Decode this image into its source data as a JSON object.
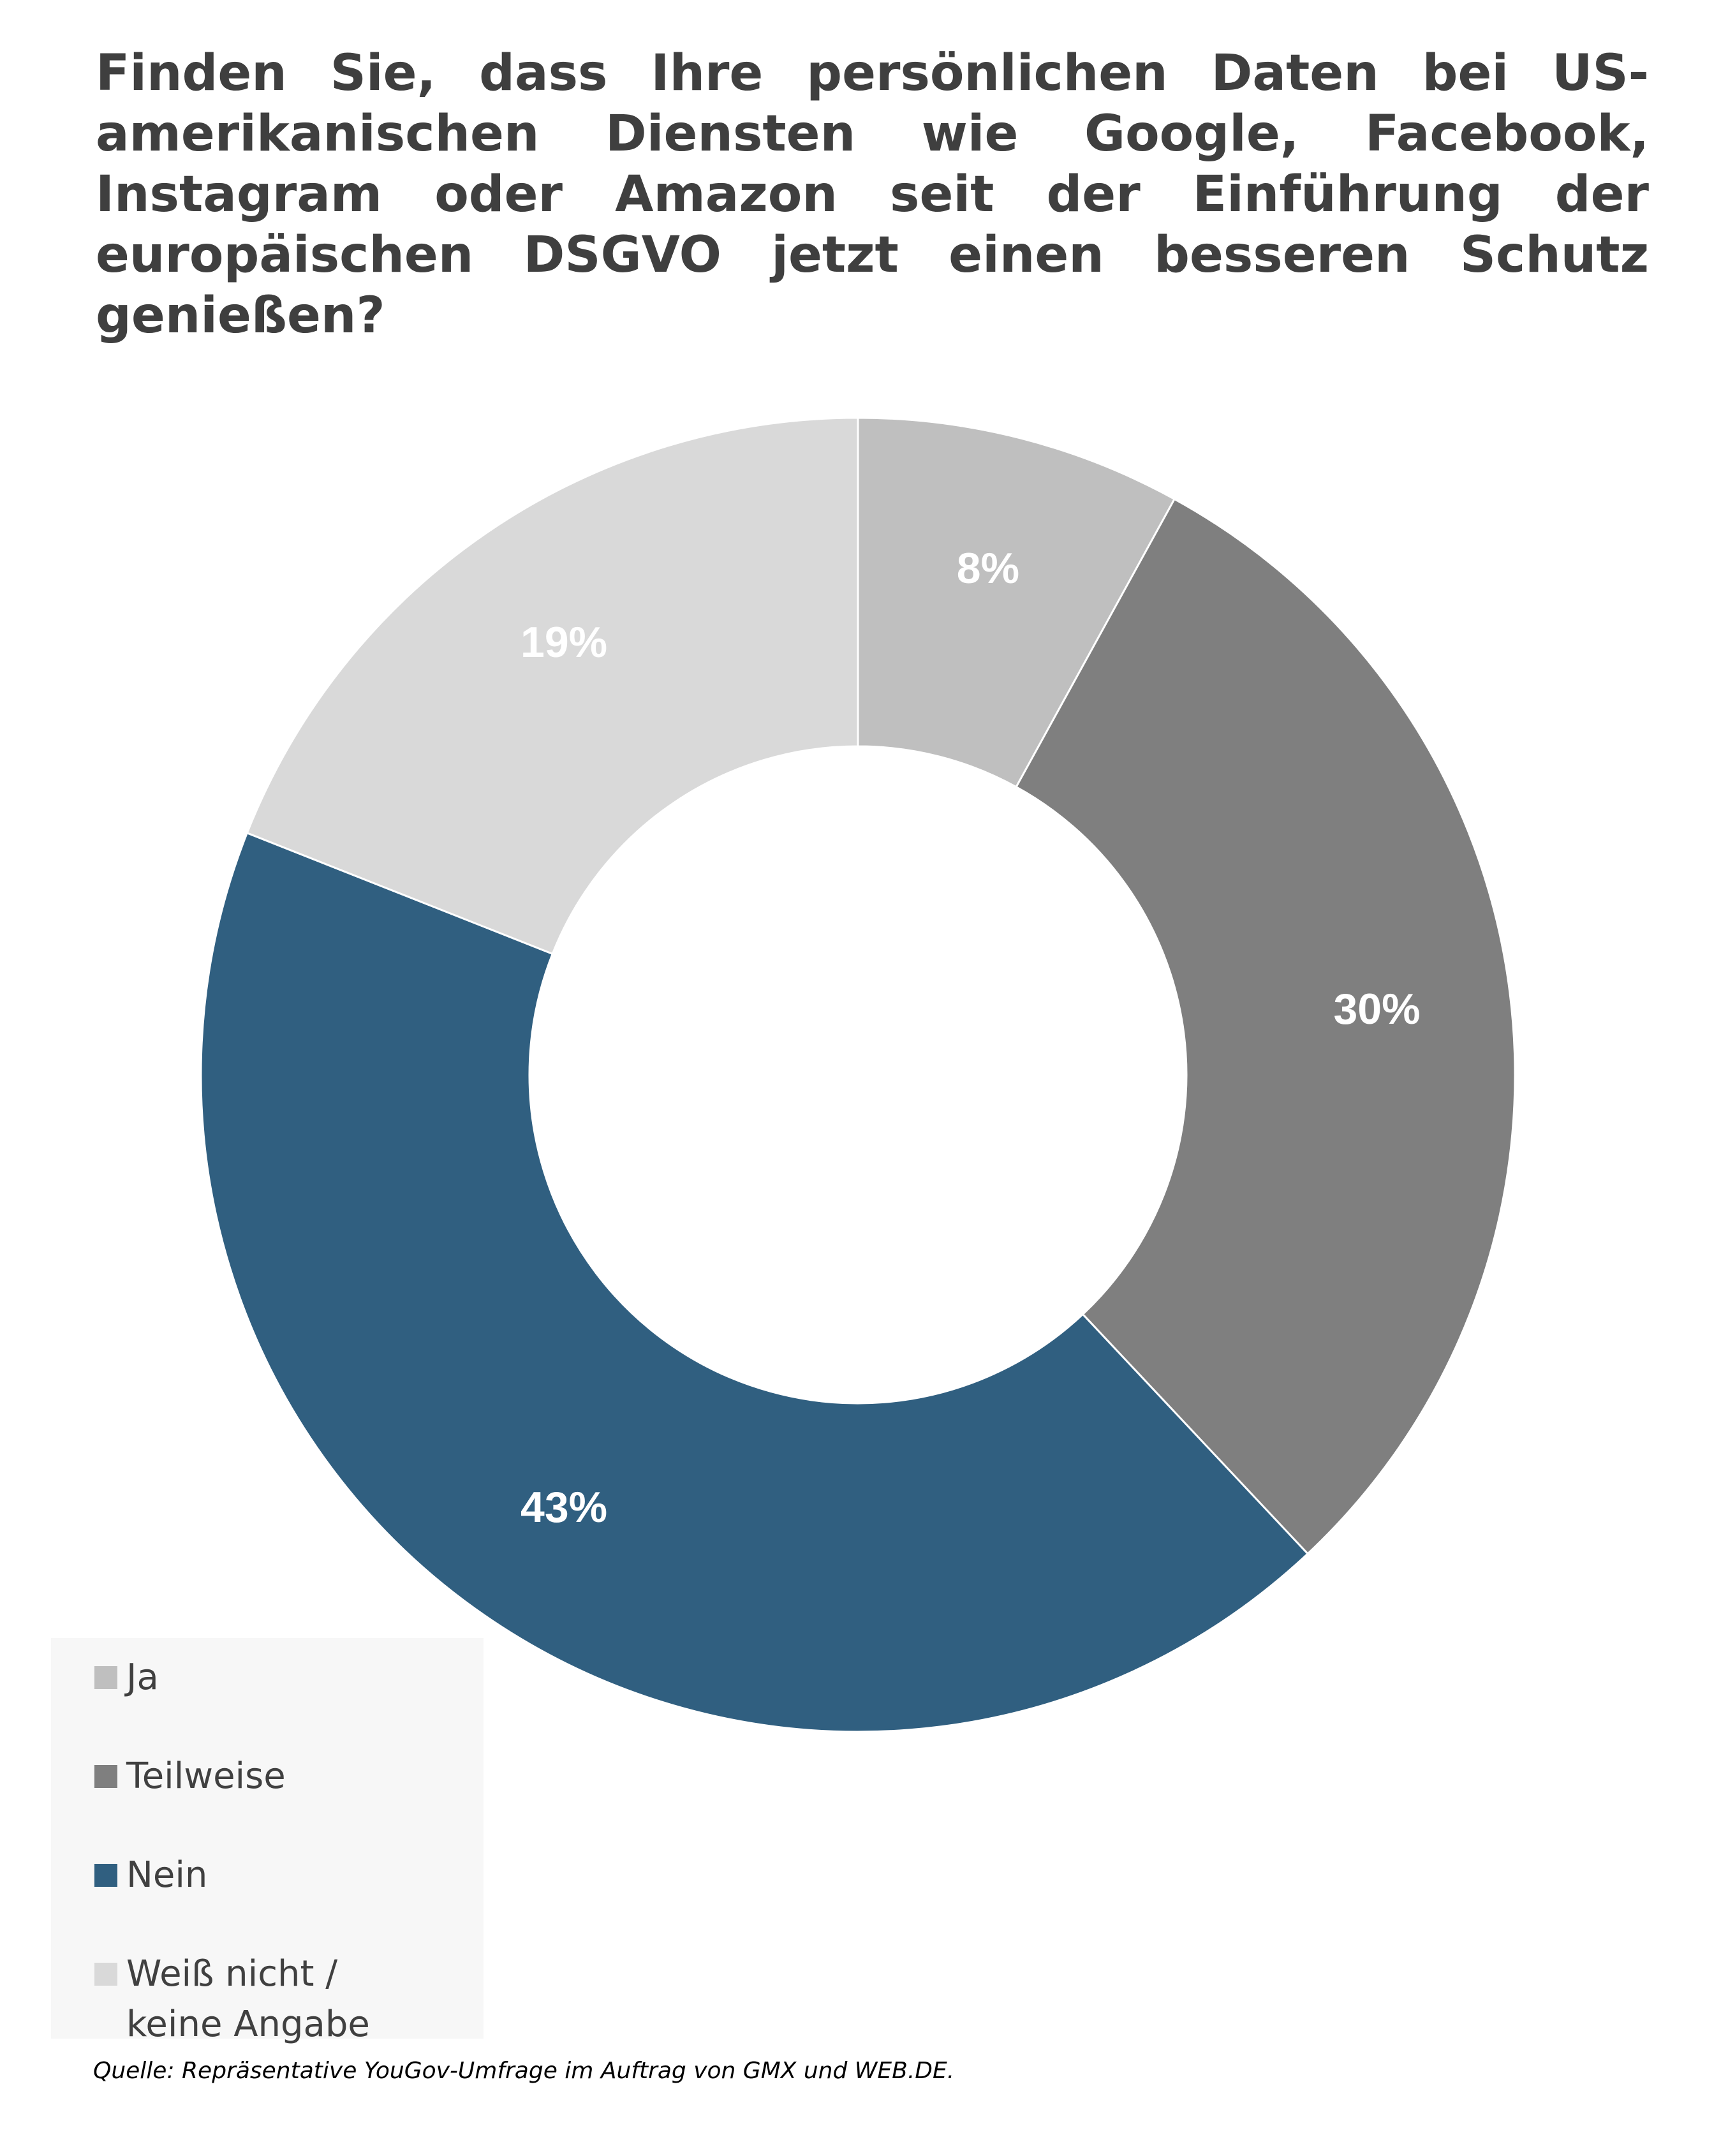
{
  "chart_data": {
    "type": "pie",
    "title": "Finden Sie, dass Ihre persönlichen Daten bei US-amerikanischen Diensten wie Google, Facebook, Instagram oder Amazon seit der Einführung der europäischen DSGVO jetzt einen besseren Schutz genießen?",
    "style": "donut",
    "categories": [
      "Ja",
      "Teilweise",
      "Nein",
      "Weiß nicht / keine Angabe"
    ],
    "values": [
      8,
      30,
      43,
      19
    ],
    "value_labels": [
      "8%",
      "30%",
      "43%",
      "19%"
    ],
    "colors": [
      "#bfbfbf",
      "#7f7f7f",
      "#305f80",
      "#d9d9d9"
    ],
    "legend_position": "bottom-left",
    "source": "Quelle: Repräsentative YouGov-Umfrage im Auftrag von GMX und WEB.DE."
  }
}
